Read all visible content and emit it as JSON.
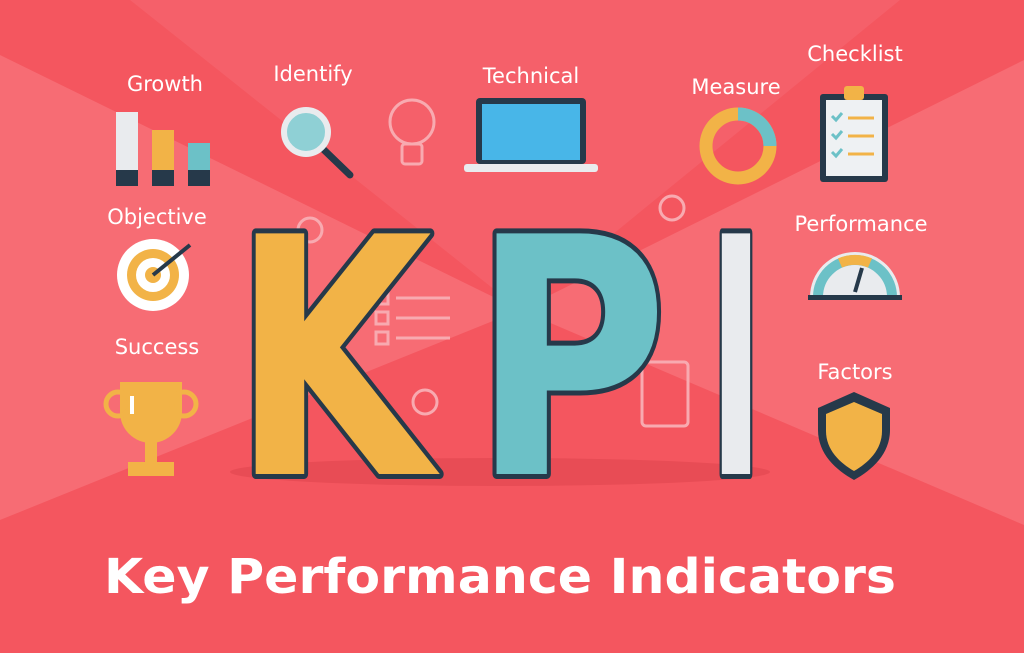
{
  "headline": {
    "letters": [
      {
        "text": "K",
        "color": "#f2b347"
      },
      {
        "text": "P",
        "color": "#6cc1c7"
      },
      {
        "text": "I",
        "color": "#e9ebee"
      }
    ]
  },
  "labels": [
    "Growth",
    "Identify",
    "Technical",
    "Measure",
    "Checklist",
    "Objective",
    "Performance",
    "Success",
    "Factors"
  ],
  "title": "Key Performance Indicators"
}
